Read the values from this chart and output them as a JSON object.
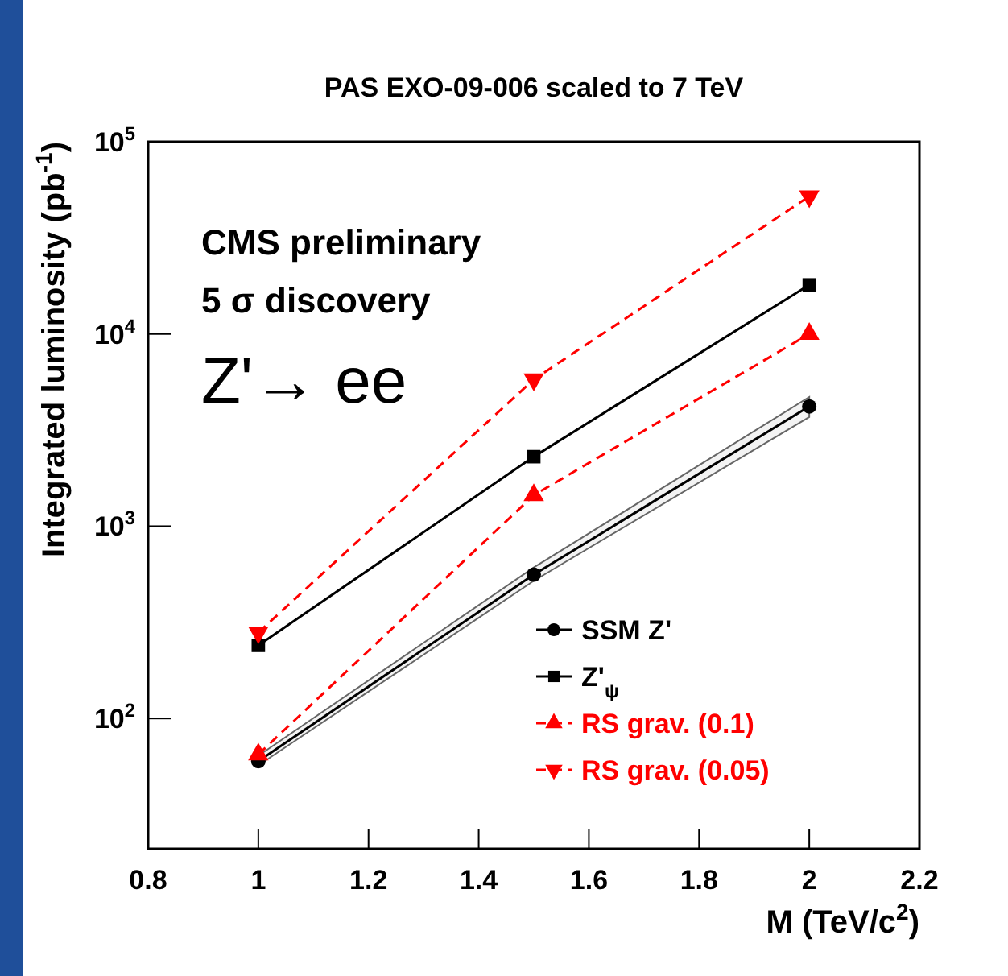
{
  "chart_data": {
    "type": "line",
    "title": "PAS EXO-09-006 scaled to 7 TeV",
    "xlabel": "M (TeV/c$^{2}$)",
    "ylabel": "Integrated luminosity (pb$^{-1}$)",
    "annotations": [
      "CMS preliminary",
      "5 σ discovery",
      "Z'→ ee"
    ],
    "x": [
      1,
      1.5,
      2
    ],
    "series": [
      {
        "name": "SSM Z'",
        "color": "#000000",
        "marker": "circle",
        "line_style": "solid",
        "values": [
          60,
          560,
          4200
        ],
        "lower": [
          57,
          520,
          3700
        ],
        "upper": [
          64,
          610,
          4700
        ]
      },
      {
        "name": "Z'$_{ψ}$",
        "color": "#000000",
        "marker": "square",
        "line_style": "solid",
        "values": [
          240,
          2300,
          18000
        ]
      },
      {
        "name": "RS grav. (0.1)",
        "color": "#ff0000",
        "marker": "triangle",
        "line_style": "dashed",
        "values": [
          65,
          1450,
          10000
        ]
      },
      {
        "name": "RS grav. (0.05)",
        "color": "#ff0000",
        "marker": "triangle-down",
        "line_style": "dashed",
        "values": [
          280,
          5800,
          52000
        ]
      }
    ],
    "log": true,
    "xlim": [
      0.8,
      2.2
    ],
    "xticks": [
      0.8,
      1,
      1.2,
      1.4,
      1.6,
      1.8,
      2,
      2.2
    ],
    "ylim": [
      21,
      100000
    ],
    "yticks": [
      {
        "value": 100,
        "label": "10$^{2}$"
      },
      {
        "value": 1000,
        "label": "10$^{3}$"
      },
      {
        "value": 10000,
        "label": "10$^{4}$"
      },
      {
        "value": 100000,
        "label": "10$^{5}$"
      }
    ],
    "grid": false,
    "legend": "bottom right"
  }
}
